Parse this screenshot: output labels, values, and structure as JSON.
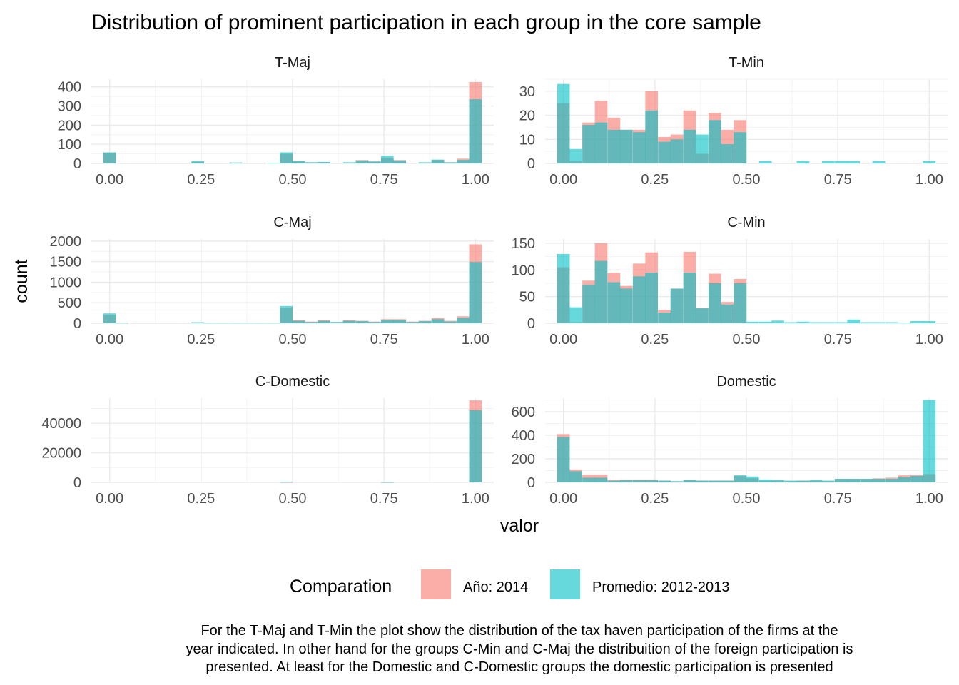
{
  "chart_data": {
    "type": "bar",
    "subtype": "faceted overlapping histogram",
    "title": "Distribution of prominent participation in each group in the core sample",
    "xlabel": "valor",
    "ylabel": "count",
    "legend": {
      "title": "Comparation",
      "position": "bottom",
      "entries": [
        {
          "label": "Año: 2014",
          "color": "#F8766D"
        },
        {
          "label": "Promedio: 2012-2013",
          "color": "#00BFC4"
        }
      ]
    },
    "caption": [
      "For the T-Maj and T-Min the plot show the distribution of the tax haven participation of the firms at the",
      "year indicated. In other hand for the groups C-Min and C-Maj the distribuition of the foreign participation is",
      "presented. At least for the Domestic and C-Domestic groups the domestic participation is presented"
    ],
    "bin_width": 0.0345,
    "xlim": [
      -0.05,
      1.05
    ],
    "x_ticks": [
      "0.00",
      "0.25",
      "0.50",
      "0.75",
      "1.00"
    ],
    "facets": [
      {
        "name": "T-Maj",
        "ylim": [
          0,
          440
        ],
        "y_ticks": [
          0,
          100,
          200,
          300,
          400
        ],
        "series": [
          {
            "name": "Año: 2014",
            "x": [
              0.0,
              0.241,
              0.345,
              0.448,
              0.483,
              0.517,
              0.552,
              0.586,
              0.655,
              0.69,
              0.724,
              0.759,
              0.793,
              0.862,
              0.897,
              0.931,
              0.966,
              1.0
            ],
            "values": [
              55,
              8,
              4,
              3,
              50,
              10,
              6,
              6,
              5,
              18,
              10,
              30,
              18,
              5,
              18,
              6,
              25,
              425
            ]
          },
          {
            "name": "Promedio: 2012-2013",
            "x": [
              0.0,
              0.241,
              0.345,
              0.448,
              0.483,
              0.517,
              0.552,
              0.586,
              0.655,
              0.69,
              0.724,
              0.759,
              0.793,
              0.862,
              0.897,
              0.931,
              0.966,
              1.0
            ],
            "values": [
              58,
              12,
              5,
              4,
              58,
              12,
              6,
              8,
              6,
              15,
              10,
              40,
              15,
              6,
              20,
              6,
              18,
              335
            ]
          }
        ]
      },
      {
        "name": "T-Min",
        "ylim": [
          0,
          35
        ],
        "y_ticks": [
          0,
          10,
          20,
          30
        ],
        "series": [
          {
            "name": "Año: 2014",
            "x": [
              0.0,
              0.034,
              0.069,
              0.103,
              0.138,
              0.172,
              0.207,
              0.241,
              0.276,
              0.31,
              0.345,
              0.379,
              0.414,
              0.448,
              0.483
            ],
            "values": [
              25,
              1,
              17,
              26,
              19,
              14,
              14,
              30,
              11,
              12,
              22,
              4,
              21,
              14,
              18
            ]
          },
          {
            "name": "Promedio: 2012-2013",
            "x": [
              0.0,
              0.034,
              0.069,
              0.103,
              0.138,
              0.172,
              0.207,
              0.241,
              0.276,
              0.31,
              0.345,
              0.379,
              0.414,
              0.448,
              0.483,
              0.552,
              0.655,
              0.724,
              0.759,
              0.793,
              0.862,
              1.0
            ],
            "values": [
              33,
              6,
              16,
              17,
              14,
              14,
              13,
              22,
              9,
              10,
              14,
              12,
              18,
              8,
              13,
              1,
              1,
              1,
              1,
              1,
              1,
              1
            ]
          }
        ]
      },
      {
        "name": "C-Maj",
        "ylim": [
          0,
          2050
        ],
        "y_ticks": [
          0,
          500,
          1000,
          1500,
          2000
        ],
        "series": [
          {
            "name": "Año: 2014",
            "x": [
              0.0,
              0.034,
              0.241,
              0.276,
              0.31,
              0.345,
              0.379,
              0.414,
              0.448,
              0.483,
              0.517,
              0.552,
              0.586,
              0.621,
              0.655,
              0.69,
              0.724,
              0.759,
              0.793,
              0.828,
              0.862,
              0.897,
              0.931,
              0.966,
              1.0
            ],
            "values": [
              200,
              10,
              20,
              10,
              10,
              10,
              10,
              10,
              10,
              380,
              80,
              40,
              80,
              30,
              80,
              60,
              40,
              100,
              100,
              40,
              60,
              130,
              60,
              170,
              1920
            ]
          },
          {
            "name": "Promedio: 2012-2013",
            "x": [
              0.0,
              0.034,
              0.241,
              0.276,
              0.31,
              0.345,
              0.379,
              0.414,
              0.448,
              0.483,
              0.517,
              0.552,
              0.586,
              0.621,
              0.655,
              0.69,
              0.724,
              0.759,
              0.793,
              0.828,
              0.862,
              0.897,
              0.931,
              0.966,
              1.0
            ],
            "values": [
              240,
              15,
              25,
              15,
              15,
              15,
              15,
              15,
              15,
              420,
              60,
              30,
              60,
              30,
              60,
              50,
              30,
              80,
              80,
              30,
              50,
              100,
              40,
              130,
              1490
            ]
          }
        ]
      },
      {
        "name": "C-Min",
        "ylim": [
          0,
          158
        ],
        "y_ticks": [
          0,
          50,
          100,
          150
        ],
        "series": [
          {
            "name": "Año: 2014",
            "x": [
              0.0,
              0.034,
              0.069,
              0.103,
              0.138,
              0.172,
              0.207,
              0.241,
              0.276,
              0.31,
              0.345,
              0.379,
              0.414,
              0.448,
              0.483
            ],
            "values": [
              105,
              2,
              80,
              150,
              95,
              70,
              112,
              133,
              25,
              65,
              134,
              28,
              93,
              40,
              83
            ]
          },
          {
            "name": "Promedio: 2012-2013",
            "x": [
              0.0,
              0.034,
              0.069,
              0.103,
              0.138,
              0.172,
              0.207,
              0.241,
              0.276,
              0.31,
              0.345,
              0.379,
              0.414,
              0.448,
              0.483,
              0.517,
              0.552,
              0.586,
              0.621,
              0.655,
              0.69,
              0.724,
              0.759,
              0.793,
              0.828,
              0.862,
              0.897,
              0.931,
              0.966,
              1.0
            ],
            "values": [
              130,
              30,
              72,
              117,
              77,
              65,
              88,
              95,
              20,
              65,
              95,
              28,
              75,
              35,
              75,
              3,
              3,
              5,
              2,
              3,
              2,
              2,
              2,
              7,
              2,
              2,
              2,
              1,
              4,
              4
            ]
          }
        ]
      },
      {
        "name": "C-Domestic",
        "ylim": [
          0,
          57000
        ],
        "y_ticks": [
          0,
          20000,
          40000
        ],
        "series": [
          {
            "name": "Año: 2014",
            "x": [
              0.483,
              0.759,
              1.0
            ],
            "values": [
              150,
              150,
              55500
            ]
          },
          {
            "name": "Promedio: 2012-2013",
            "x": [
              0.483,
              0.759,
              1.0
            ],
            "values": [
              300,
              200,
              48800
            ]
          }
        ]
      },
      {
        "name": "Domestic",
        "ylim": [
          0,
          715
        ],
        "y_ticks": [
          0,
          200,
          400,
          600
        ],
        "series": [
          {
            "name": "Año: 2014",
            "x": [
              0.0,
              0.034,
              0.069,
              0.103,
              0.138,
              0.172,
              0.207,
              0.241,
              0.276,
              0.31,
              0.345,
              0.379,
              0.414,
              0.448,
              0.483,
              0.517,
              0.552,
              0.586,
              0.621,
              0.655,
              0.69,
              0.724,
              0.759,
              0.793,
              0.828,
              0.862,
              0.897,
              0.931,
              0.966,
              1.0
            ],
            "values": [
              410,
              110,
              65,
              65,
              20,
              25,
              25,
              25,
              15,
              10,
              20,
              15,
              15,
              15,
              55,
              35,
              15,
              15,
              10,
              15,
              15,
              10,
              30,
              30,
              30,
              35,
              40,
              60,
              65,
              70
            ]
          },
          {
            "name": "Promedio: 2012-2013",
            "x": [
              0.0,
              0.034,
              0.069,
              0.103,
              0.138,
              0.172,
              0.207,
              0.241,
              0.276,
              0.31,
              0.345,
              0.379,
              0.414,
              0.448,
              0.483,
              0.517,
              0.552,
              0.586,
              0.621,
              0.655,
              0.69,
              0.724,
              0.759,
              0.793,
              0.828,
              0.862,
              0.897,
              0.931,
              0.966,
              1.0
            ],
            "values": [
              385,
              95,
              40,
              40,
              15,
              20,
              20,
              20,
              15,
              10,
              20,
              15,
              15,
              15,
              60,
              50,
              25,
              20,
              15,
              15,
              20,
              15,
              30,
              30,
              30,
              30,
              30,
              45,
              55,
              700
            ]
          }
        ]
      }
    ]
  }
}
